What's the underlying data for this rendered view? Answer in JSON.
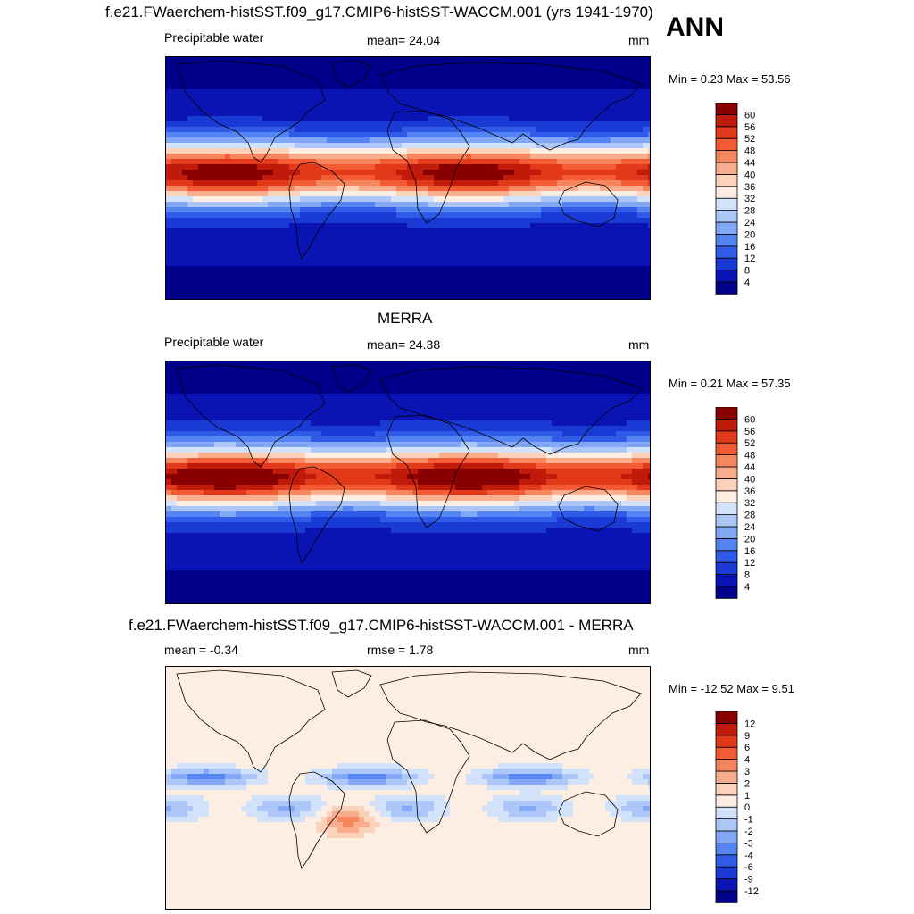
{
  "season": "ANN",
  "panels": [
    {
      "title": "f.e21.FWaerchem-histSST.f09_g17.CMIP6-histSST-WACCM.001 (yrs 1941-1970)",
      "left": "Precipitable water",
      "center": "mean=  24.04",
      "units": "mm",
      "minmax": "Min =   0.23 Max =  53.56"
    },
    {
      "title": "MERRA",
      "left": "Precipitable water",
      "center": "mean=  24.38",
      "units": "mm",
      "minmax": "Min =   0.21 Max =  57.35"
    },
    {
      "title": "f.e21.FWaerchem-histSST.f09_g17.CMIP6-histSST-WACCM.001 - MERRA",
      "left": "mean =  -0.34",
      "center": "rmse =    1.78",
      "units": "mm",
      "minmax": "Min = -12.52 Max =   9.51"
    }
  ],
  "chart_data": [
    {
      "type": "heatmap",
      "title": "f.e21.FWaerchem-histSST.f09_g17.CMIP6-histSST-WACCM.001 (yrs 1941-1970)",
      "variable": "Precipitable water",
      "units": "mm",
      "mean": 24.04,
      "min": 0.23,
      "max": 53.56,
      "colorbar_levels": [
        4,
        8,
        12,
        16,
        20,
        24,
        28,
        32,
        36,
        40,
        44,
        48,
        52,
        56,
        60
      ],
      "colors": [
        "#00008b",
        "#0a14b4",
        "#1a3ad6",
        "#2f5be8",
        "#5585f2",
        "#82a8f5",
        "#acc7f7",
        "#d3e2fb",
        "#fdeee4",
        "#fcd2ba",
        "#f9ad8c",
        "#f6865d",
        "#f25b33",
        "#e2391b",
        "#c01a0a",
        "#8a0000"
      ]
    },
    {
      "type": "heatmap",
      "title": "MERRA",
      "variable": "Precipitable water",
      "units": "mm",
      "mean": 24.38,
      "min": 0.21,
      "max": 57.35,
      "colorbar_levels": [
        4,
        8,
        12,
        16,
        20,
        24,
        28,
        32,
        36,
        40,
        44,
        48,
        52,
        56,
        60
      ],
      "colors": [
        "#00008b",
        "#0a14b4",
        "#1a3ad6",
        "#2f5be8",
        "#5585f2",
        "#82a8f5",
        "#acc7f7",
        "#d3e2fb",
        "#fdeee4",
        "#fcd2ba",
        "#f9ad8c",
        "#f6865d",
        "#f25b33",
        "#e2391b",
        "#c01a0a",
        "#8a0000"
      ]
    },
    {
      "type": "heatmap",
      "title": "f.e21.FWaerchem-histSST.f09_g17.CMIP6-histSST-WACCM.001 - MERRA",
      "units": "mm",
      "mean": -0.34,
      "rmse": 1.78,
      "min": -12.52,
      "max": 9.51,
      "colorbar_levels": [
        -12,
        -9,
        -6,
        -4,
        -3,
        -2,
        -1,
        0,
        1,
        2,
        3,
        4,
        6,
        9,
        12
      ],
      "colors": [
        "#00008b",
        "#0a14b4",
        "#1a3ad6",
        "#2f5be8",
        "#5585f2",
        "#82a8f5",
        "#acc7f7",
        "#d3e2fb",
        "#fdeee4",
        "#fcd2ba",
        "#f9ad8c",
        "#f6865d",
        "#f25b33",
        "#e2391b",
        "#c01a0a",
        "#8a0000"
      ]
    }
  ]
}
